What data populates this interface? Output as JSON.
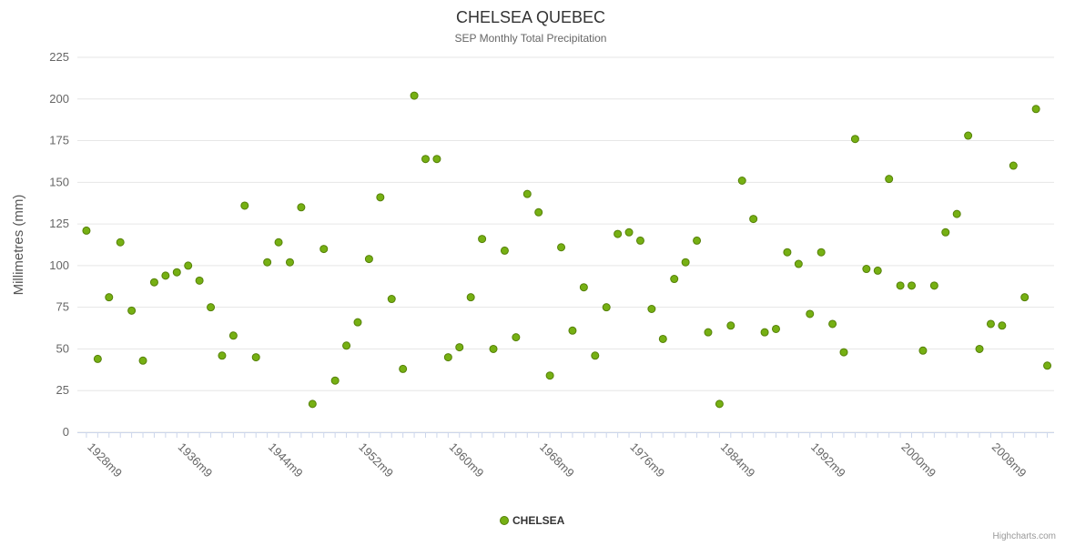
{
  "header": {
    "title": "CHELSEA QUEBEC",
    "subtitle": "SEP Monthly Total Precipitation"
  },
  "credits": {
    "label": "Highcharts.com"
  },
  "chart_data": {
    "type": "scatter",
    "title": "CHELSEA QUEBEC",
    "subtitle": "SEP Monthly Total Precipitation",
    "xlabel": "",
    "ylabel": "Millimetres (mm)",
    "ylim": [
      0,
      225
    ],
    "xlim": [
      1926.2,
      2012.6
    ],
    "yticks": [
      0,
      25,
      50,
      75,
      100,
      125,
      150,
      175,
      200,
      225
    ],
    "xticks": [
      1928,
      1936,
      1944,
      1952,
      1960,
      1968,
      1976,
      1984,
      1992,
      2000,
      2008
    ],
    "xtick_labels": [
      "1928m9",
      "1936m9",
      "1944m9",
      "1952m9",
      "1960m9",
      "1968m9",
      "1976m9",
      "1984m9",
      "1992m9",
      "2000m9",
      "2008m9"
    ],
    "grid": "horizontal",
    "legend_position": "bottom-center",
    "marker_radius": 4,
    "series": [
      {
        "name": "CHELSEA",
        "color": "#76b013",
        "marker_stroke": "#558008",
        "data": [
          [
            1927,
            121
          ],
          [
            1928,
            44
          ],
          [
            1929,
            81
          ],
          [
            1930,
            114
          ],
          [
            1931,
            73
          ],
          [
            1932,
            43
          ],
          [
            1933,
            90
          ],
          [
            1934,
            94
          ],
          [
            1935,
            96
          ],
          [
            1936,
            100
          ],
          [
            1937,
            91
          ],
          [
            1938,
            75
          ],
          [
            1939,
            46
          ],
          [
            1940,
            58
          ],
          [
            1941,
            136
          ],
          [
            1942,
            45
          ],
          [
            1943,
            102
          ],
          [
            1944,
            114
          ],
          [
            1945,
            102
          ],
          [
            1946,
            135
          ],
          [
            1947,
            17
          ],
          [
            1948,
            110
          ],
          [
            1949,
            31
          ],
          [
            1950,
            52
          ],
          [
            1951,
            66
          ],
          [
            1952,
            104
          ],
          [
            1953,
            141
          ],
          [
            1954,
            80
          ],
          [
            1955,
            38
          ],
          [
            1956,
            202
          ],
          [
            1957,
            164
          ],
          [
            1958,
            164
          ],
          [
            1959,
            45
          ],
          [
            1960,
            51
          ],
          [
            1961,
            81
          ],
          [
            1962,
            116
          ],
          [
            1963,
            50
          ],
          [
            1964,
            109
          ],
          [
            1965,
            57
          ],
          [
            1966,
            143
          ],
          [
            1967,
            132
          ],
          [
            1968,
            34
          ],
          [
            1969,
            111
          ],
          [
            1970,
            61
          ],
          [
            1971,
            87
          ],
          [
            1972,
            46
          ],
          [
            1973,
            75
          ],
          [
            1974,
            119
          ],
          [
            1975,
            120
          ],
          [
            1976,
            115
          ],
          [
            1977,
            74
          ],
          [
            1978,
            56
          ],
          [
            1979,
            92
          ],
          [
            1980,
            102
          ],
          [
            1981,
            115
          ],
          [
            1982,
            60
          ],
          [
            1983,
            17
          ],
          [
            1984,
            64
          ],
          [
            1985,
            151
          ],
          [
            1986,
            128
          ],
          [
            1987,
            60
          ],
          [
            1988,
            62
          ],
          [
            1989,
            108
          ],
          [
            1990,
            101
          ],
          [
            1991,
            71
          ],
          [
            1992,
            108
          ],
          [
            1993,
            65
          ],
          [
            1994,
            48
          ],
          [
            1995,
            176
          ],
          [
            1996,
            98
          ],
          [
            1997,
            97
          ],
          [
            1998,
            152
          ],
          [
            1999,
            88
          ],
          [
            2000,
            88
          ],
          [
            2001,
            49
          ],
          [
            2002,
            88
          ],
          [
            2003,
            120
          ],
          [
            2004,
            131
          ],
          [
            2005,
            178
          ],
          [
            2006,
            50
          ],
          [
            2007,
            65
          ],
          [
            2008,
            64
          ],
          [
            2009,
            160
          ],
          [
            2010,
            81
          ],
          [
            2011,
            194
          ],
          [
            2012,
            40
          ]
        ]
      }
    ]
  }
}
